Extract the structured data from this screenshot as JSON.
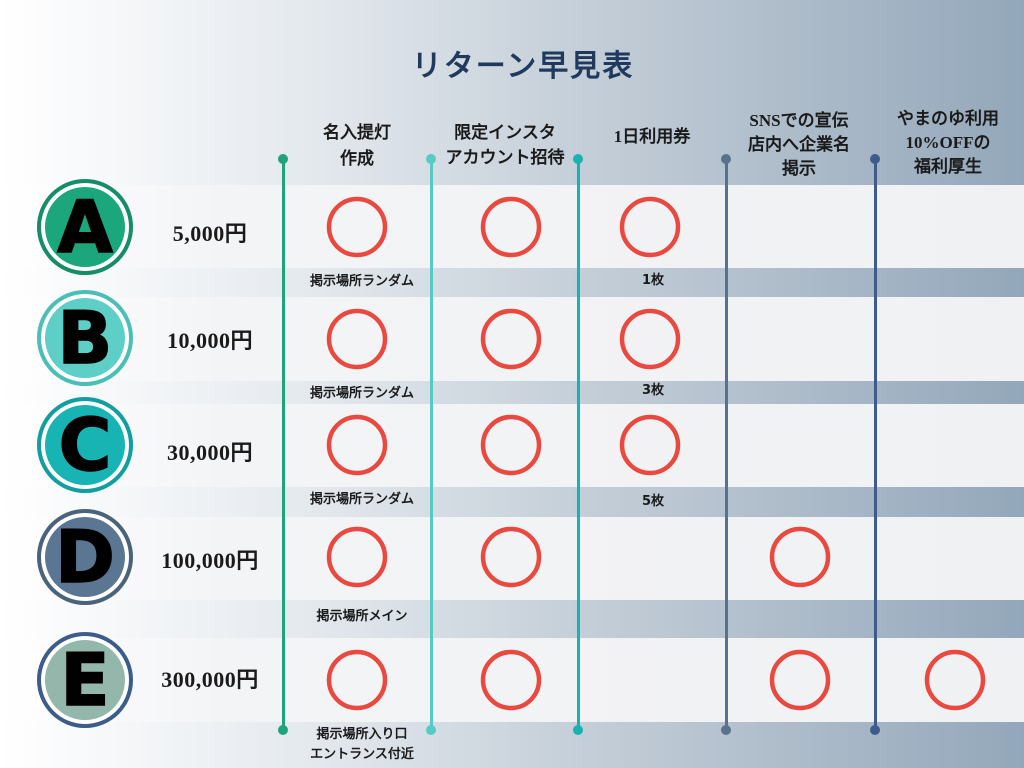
{
  "title": "リターン早見表",
  "columns": [
    {
      "lines": [
        "名入提灯",
        "作成"
      ]
    },
    {
      "lines": [
        "限定インスタ",
        "アカウント招待"
      ]
    },
    {
      "lines": [
        "1日利用券"
      ]
    },
    {
      "lines": [
        "SNSでの宣伝",
        "店内へ企業名",
        "掲示"
      ]
    },
    {
      "lines": [
        "やまのゆ利用",
        "10%OFFの",
        "福利厚生"
      ]
    }
  ],
  "divider_colors": [
    "#1fa37c",
    "#56cbc3",
    "#16b4b0",
    "#58728d",
    "#3e5c8b"
  ],
  "tiers": [
    {
      "letter": "A",
      "price": "5,000円",
      "badge_fill": "#1ba67c",
      "badge_ring": "#168c67",
      "included": [
        true,
        true,
        true,
        false,
        false
      ],
      "placement": [
        "掲示場所ランダム"
      ],
      "tickets": "1枚"
    },
    {
      "letter": "B",
      "price": "10,000円",
      "badge_fill": "#5dcfc6",
      "badge_ring": "#4bbfb5",
      "included": [
        true,
        true,
        true,
        false,
        false
      ],
      "placement": [
        "掲示場所ランダム"
      ],
      "tickets": "3枚"
    },
    {
      "letter": "C",
      "price": "30,000円",
      "badge_fill": "#18b3b3",
      "badge_ring": "#129ea0",
      "included": [
        true,
        true,
        true,
        false,
        false
      ],
      "placement": [
        "掲示場所ランダム"
      ],
      "tickets": "5枚"
    },
    {
      "letter": "D",
      "price": "100,000円",
      "badge_fill": "#5b7692",
      "badge_ring": "#4a637d",
      "included": [
        true,
        true,
        false,
        true,
        false
      ],
      "placement": [
        "掲示場所メイン"
      ]
    },
    {
      "letter": "E",
      "price": "300,000円",
      "badge_fill": "#93b7aa",
      "badge_ring": "#3d5c8a",
      "included": [
        true,
        true,
        false,
        true,
        true
      ],
      "placement": [
        "掲示場所入り口",
        "エントランス付近"
      ]
    }
  ],
  "mark": {
    "icon": "red-circle-icon",
    "color": "#e9493f"
  },
  "colors": {
    "title": "#1f3a5c",
    "row_band": "#f0f1f3",
    "text": "#1a1a1a"
  }
}
